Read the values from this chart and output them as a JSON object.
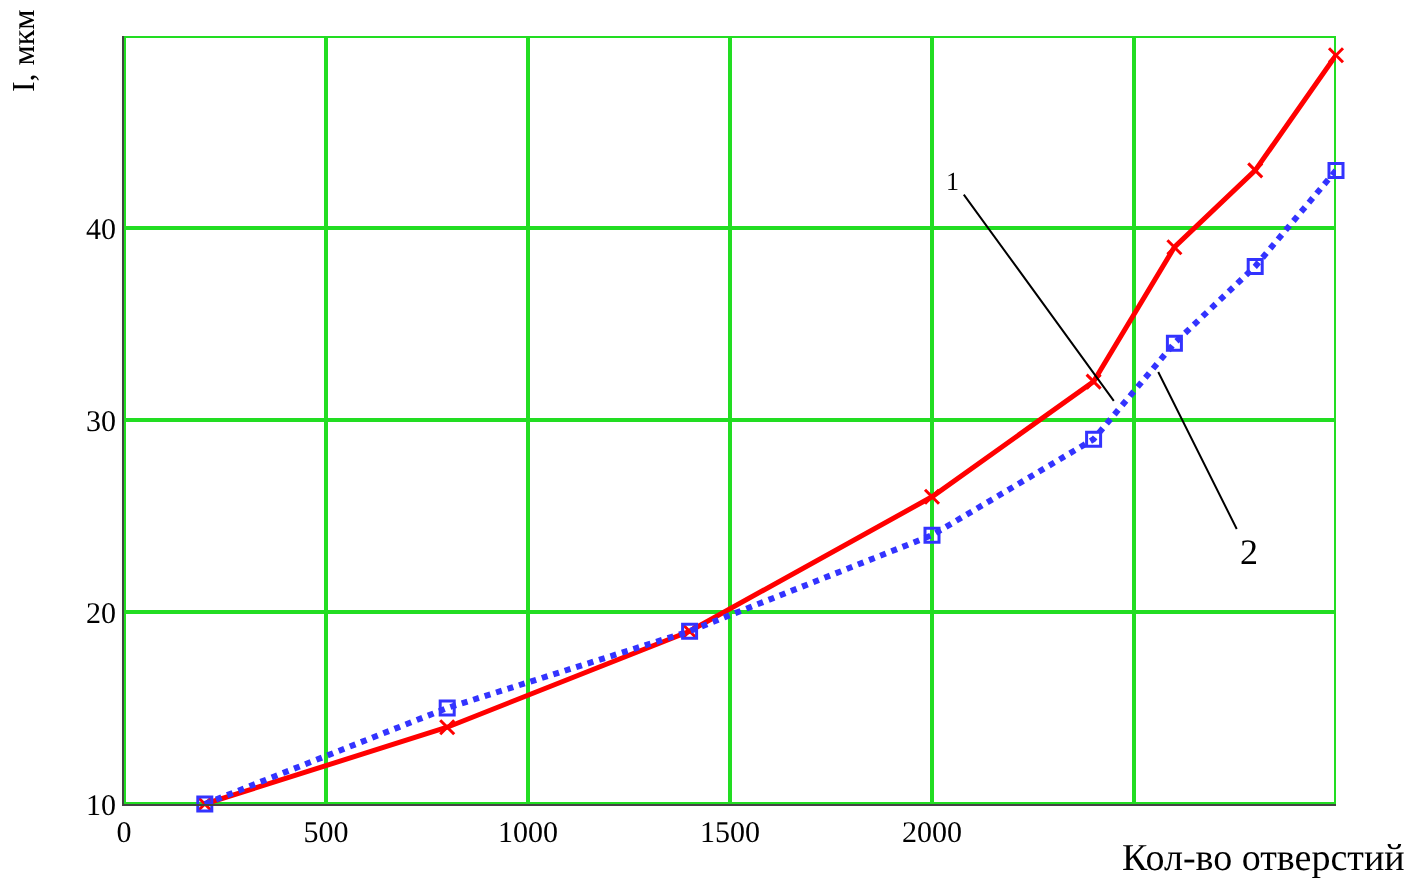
{
  "chart_data": {
    "type": "line",
    "xlabel": "Кол-во отверстий",
    "ylabel": "I, мкм",
    "xlim": [
      0,
      3000
    ],
    "ylim": [
      10,
      50
    ],
    "xticks": [
      0,
      500,
      1000,
      1500,
      2000,
      {
        "value": 2500,
        "label": null
      },
      {
        "value": 3000,
        "label": null
      }
    ],
    "yticks": [
      10,
      20,
      30,
      40,
      {
        "value": 50,
        "label": null
      }
    ],
    "grid": true,
    "series": [
      {
        "color": "#ff0000",
        "marker": "cross",
        "line_style": "solid",
        "x": [
          200,
          800,
          1400,
          2000,
          2400,
          2600,
          2800,
          3000
        ],
        "values": [
          10,
          14,
          19,
          26,
          32,
          39,
          43,
          49
        ]
      },
      {
        "color": "#3333ff",
        "marker": "square",
        "line_style": "dotted",
        "x": [
          200,
          800,
          1400,
          2000,
          2400,
          2600,
          2800,
          3000
        ],
        "values": [
          10,
          15,
          19,
          24,
          29,
          34,
          38,
          43
        ]
      }
    ],
    "annotations": [
      {
        "text": "1",
        "x": 2450,
        "y": 31
      },
      {
        "text": "2",
        "x": 2560,
        "y": 32.5
      }
    ]
  }
}
